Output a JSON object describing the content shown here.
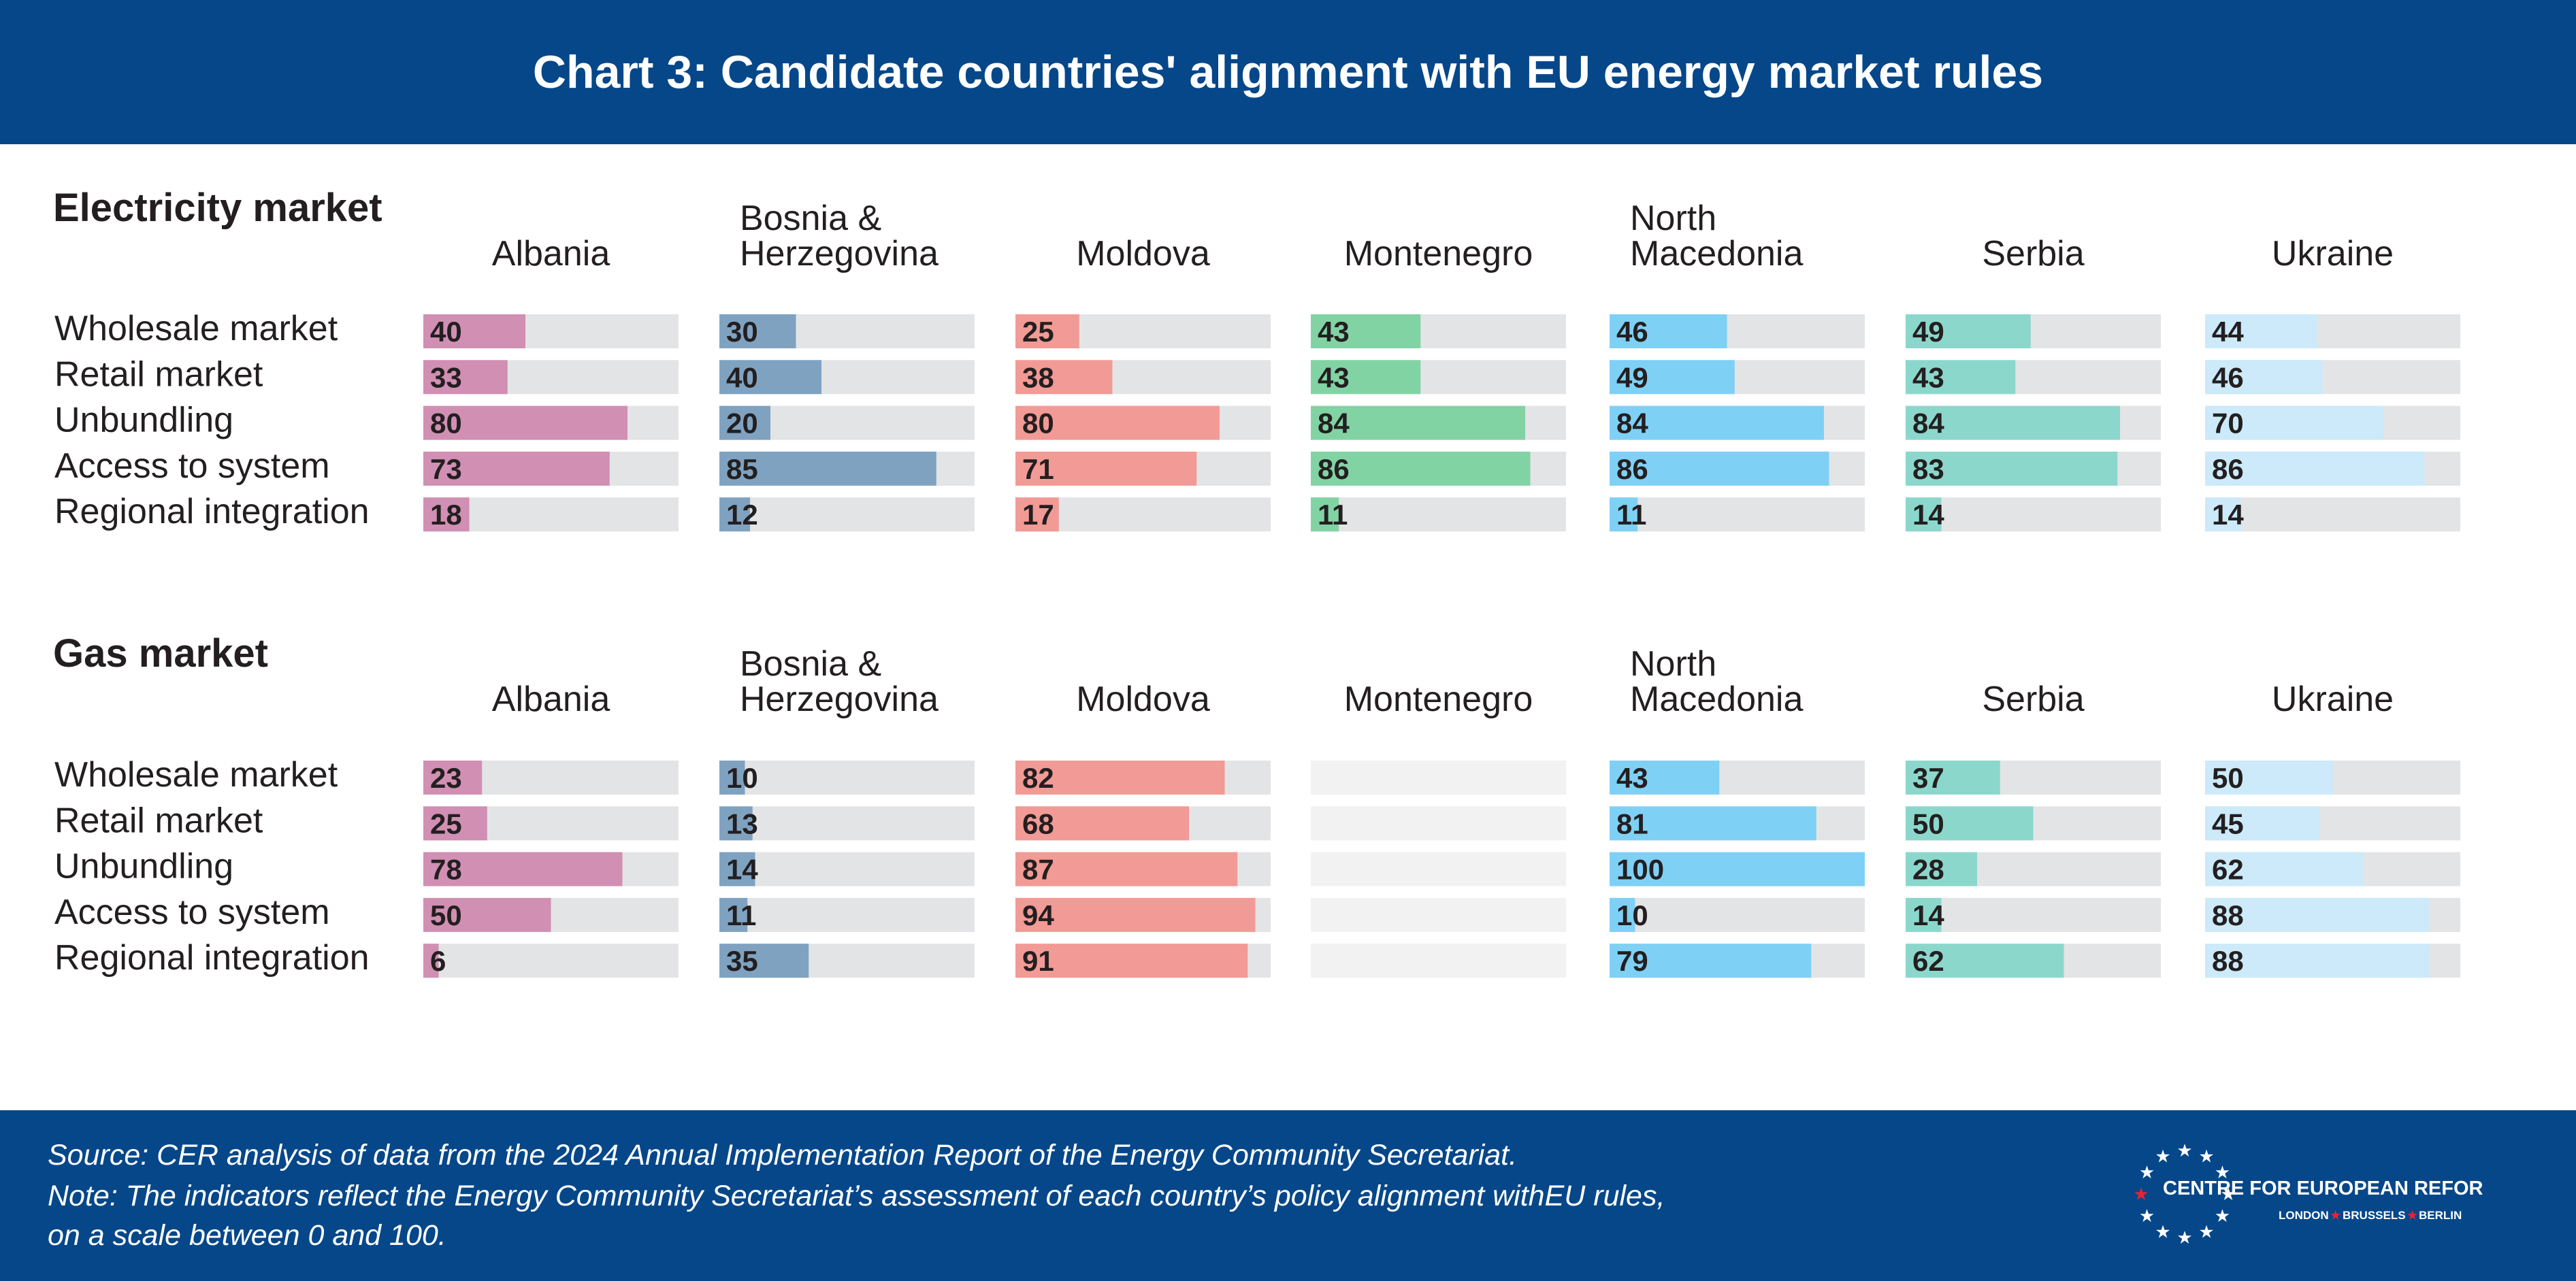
{
  "title": "Chart 3: Candidate countries' alignment with EU energy market rules",
  "footer": {
    "source": "Source: CER analysis of data from the 2024 Annual Implementation Report of the Energy Community Secretariat.",
    "note_line1": "Note: The indicators reflect the Energy Community Secretariat’s assessment of each country’s policy alignment withEU rules,",
    "note_line2": "on a scale between 0 and 100.",
    "logo_name": "CENTRE FOR EUROPEAN REFORM",
    "logo_city1": "LONDON",
    "logo_city2": "BRUSSELS",
    "logo_city3": "BERLIN"
  },
  "colors": {
    "header_bg": "#064789",
    "track": "#E3E4E6",
    "track_empty": "#F2F2F3",
    "text": "#231F20",
    "Albania": "#D08FB3",
    "Bosnia & Herzegovina": "#7FA2C1",
    "Moldova": "#F29A95",
    "Montenegro": "#82D3A4",
    "North Macedonia": "#7FD0F5",
    "Serbia": "#8CD7CC",
    "Ukraine": "#CCEAF9"
  },
  "chart_data": [
    {
      "type": "bar",
      "title": "Electricity market",
      "scale": [
        0,
        100
      ],
      "categories": [
        "Wholesale market",
        "Retail market",
        "Unbundling",
        "Access to system",
        "Regional integration"
      ],
      "series": [
        {
          "name": "Albania",
          "values": [
            40,
            33,
            80,
            73,
            18
          ]
        },
        {
          "name": "Bosnia & Herzegovina",
          "values": [
            30,
            40,
            20,
            85,
            12
          ]
        },
        {
          "name": "Moldova",
          "values": [
            25,
            38,
            80,
            71,
            17
          ]
        },
        {
          "name": "Montenegro",
          "values": [
            43,
            43,
            84,
            86,
            11
          ]
        },
        {
          "name": "North Macedonia",
          "values": [
            46,
            49,
            84,
            86,
            11
          ]
        },
        {
          "name": "Serbia",
          "values": [
            49,
            43,
            84,
            83,
            14
          ]
        },
        {
          "name": "Ukraine",
          "values": [
            44,
            46,
            70,
            86,
            14
          ]
        }
      ]
    },
    {
      "type": "bar",
      "title": "Gas market",
      "scale": [
        0,
        100
      ],
      "categories": [
        "Wholesale market",
        "Retail market",
        "Unbundling",
        "Access to system",
        "Regional integration"
      ],
      "series": [
        {
          "name": "Albania",
          "values": [
            23,
            25,
            78,
            50,
            6
          ]
        },
        {
          "name": "Bosnia & Herzegovina",
          "values": [
            10,
            13,
            14,
            11,
            35
          ]
        },
        {
          "name": "Moldova",
          "values": [
            82,
            68,
            87,
            94,
            91
          ]
        },
        {
          "name": "Montenegro",
          "values": [
            null,
            null,
            null,
            null,
            null
          ]
        },
        {
          "name": "North Macedonia",
          "values": [
            43,
            81,
            100,
            10,
            79
          ]
        },
        {
          "name": "Serbia",
          "values": [
            37,
            50,
            28,
            14,
            62
          ]
        },
        {
          "name": "Ukraine",
          "values": [
            50,
            45,
            62,
            88,
            88
          ]
        }
      ]
    }
  ]
}
